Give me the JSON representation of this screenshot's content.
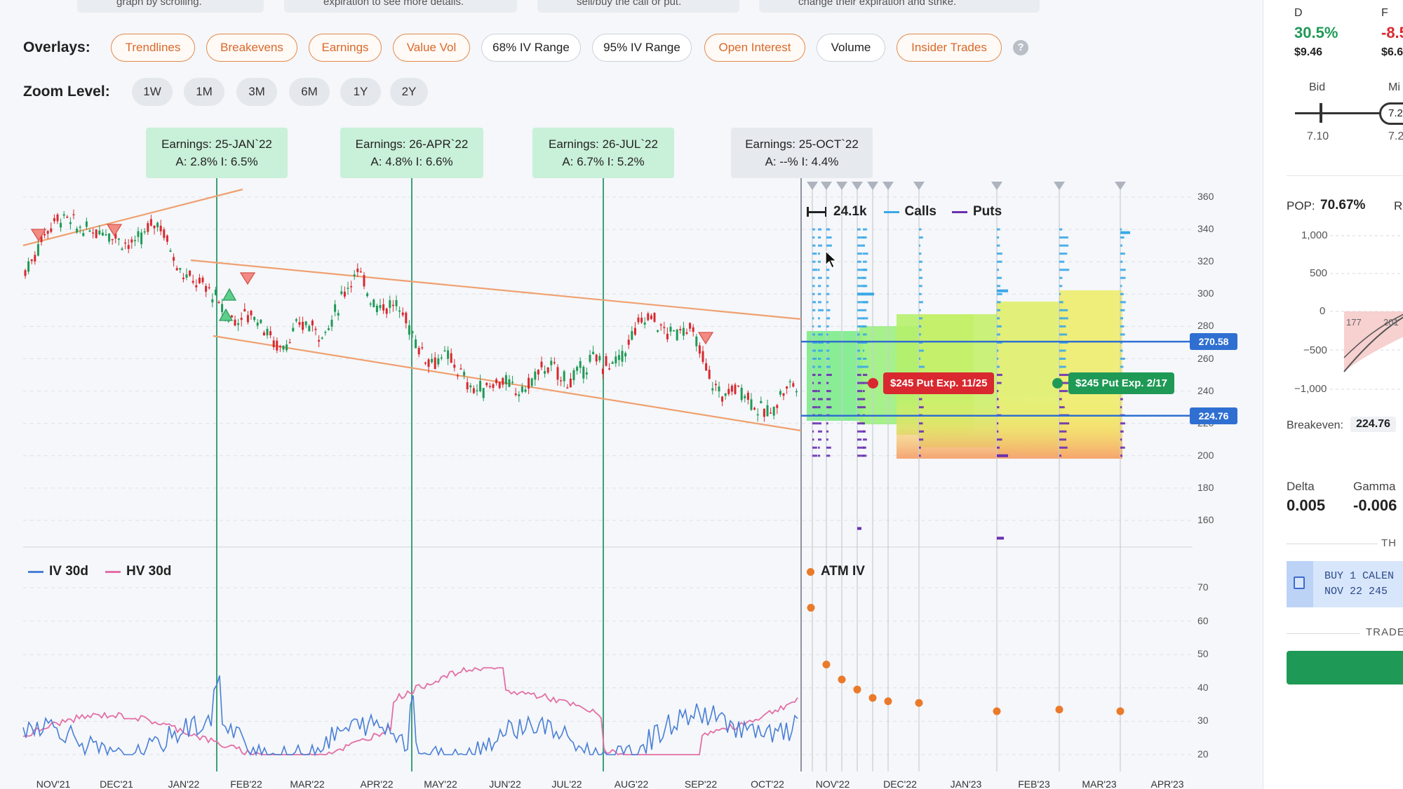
{
  "hints": [
    "graph by scrolling.",
    "expiration to see more details.",
    "sell/buy the call or put.",
    "change their expiration and strike."
  ],
  "overlays": {
    "label": "Overlays:",
    "items": [
      {
        "label": "Trendlines",
        "active": true
      },
      {
        "label": "Breakevens",
        "active": true
      },
      {
        "label": "Earnings",
        "active": true
      },
      {
        "label": "Value Vol",
        "active": true
      },
      {
        "label": "68% IV Range",
        "active": false
      },
      {
        "label": "95% IV Range",
        "active": false
      },
      {
        "label": "Open Interest",
        "active": true
      },
      {
        "label": "Volume",
        "active": false
      },
      {
        "label": "Insider Trades",
        "active": true
      }
    ],
    "help": "?"
  },
  "zoom": {
    "label": "Zoom Level:",
    "items": [
      "1W",
      "1M",
      "3M",
      "6M",
      "1Y",
      "2Y"
    ]
  },
  "earnings": [
    {
      "title": "Earnings: 25-JAN`22",
      "detail": "A: 2.8%   I: 6.5%"
    },
    {
      "title": "Earnings: 26-APR`22",
      "detail": "A: 4.8%   I: 6.6%"
    },
    {
      "title": "Earnings: 26-JUL`22",
      "detail": "A: 6.7%   I: 5.2%"
    },
    {
      "title": "Earnings: 25-OCT`22",
      "detail": "A: --%   I: 4.4%"
    }
  ],
  "legend_top": {
    "volume": "24.1k",
    "calls": "Calls",
    "puts": "Puts"
  },
  "legend_bottom": {
    "iv": "IV 30d",
    "hv": "HV 30d",
    "atm": "ATM IV"
  },
  "price_axis": [
    "360",
    "340",
    "320",
    "300",
    "280",
    "260",
    "240",
    "220",
    "200",
    "180",
    "160"
  ],
  "iv_axis": [
    "70",
    "60",
    "50",
    "40",
    "30",
    "20"
  ],
  "breakeven_tags": [
    "270.58",
    "224.76"
  ],
  "positions": [
    {
      "label": "$245 Put Exp. 11/25",
      "color": "#d9282f"
    },
    {
      "label": "$245 Put Exp. 2/17",
      "color": "#1f9a56"
    }
  ],
  "x_axis": [
    "NOV'21",
    "DEC'21",
    "JAN'22",
    "FEB'22",
    "MAR'22",
    "APR'22",
    "MAY'22",
    "JUN'22",
    "JUL'22",
    "AUG'22",
    "SEP'22",
    "OCT'22",
    "NOV'22",
    "DEC'22",
    "JAN'23",
    "FEB'23",
    "MAR'23",
    "APR'23"
  ],
  "colors": {
    "accent": "#e3884b",
    "candle_up": "#1f9a56",
    "candle_down": "#d9282f",
    "iv_line": "#4a7fd6",
    "hv_line": "#e36fa6",
    "calls": "#3aa8e8",
    "puts": "#6a2fb0",
    "breakeven": "#2f6fd1"
  },
  "panel": {
    "col_d": "D",
    "col_f": "F",
    "d_pct": "30.5%",
    "d_val": "$9.46",
    "f_pct": "-8.5",
    "f_val": "$6.6",
    "bid": "Bid",
    "mid": "Mi",
    "bid_val": "7.10",
    "mid_val": "7.2",
    "mid_bubble": "7.2",
    "pop_label": "POP:",
    "pop_val": "70.67%",
    "r_label": "R",
    "pl_ticks": [
      "1,000",
      "500",
      "0",
      "−500",
      "−1,000"
    ],
    "pl_x": [
      "177",
      "201"
    ],
    "breakeven_label": "Breakeven:",
    "breakeven_val": "224.76",
    "delta_label": "Delta",
    "delta_val": "0.005",
    "gamma_label": "Gamma",
    "gamma_val": "-0.006",
    "th_label": "TH",
    "buy_line1": "BUY 1 CALEN",
    "buy_line2": "NOV 22 245",
    "trade_label": "TRADE C"
  }
}
